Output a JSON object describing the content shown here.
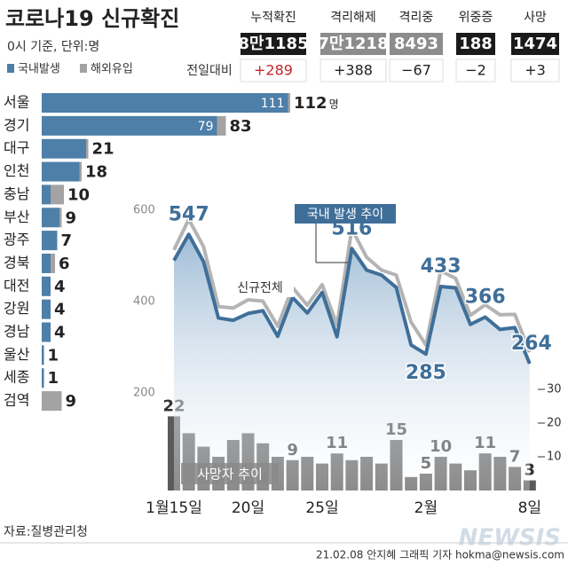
{
  "header": {
    "title": "코로나19 신규확진",
    "subtitle": "0시 기준, 단위:명"
  },
  "stats": {
    "labels": [
      "누적확진",
      "격리해제",
      "격리중",
      "위중증",
      "사망"
    ],
    "values": [
      "8만1185",
      "7만1218",
      "8493",
      "188",
      "1474"
    ],
    "change_label": "전일대비",
    "changes": [
      "+289",
      "+388",
      "−67",
      "−2",
      "+3"
    ]
  },
  "footer": {
    "source": "자료:질병관리청",
    "credit": "21.02.08 안지혜 그래픽 기자 hokma@newsis.com",
    "watermark": "NEWSIS"
  },
  "chart_data": [
    {
      "type": "hbar",
      "stacked": true,
      "categories": [
        "서울",
        "경기",
        "대구",
        "인천",
        "충남",
        "부산",
        "광주",
        "경북",
        "대전",
        "강원",
        "경남",
        "울산",
        "세종",
        "검역"
      ],
      "series": [
        {
          "name": "국내발생",
          "color": "#4d7fa8",
          "values": [
            111,
            79,
            20,
            17,
            4,
            8,
            7,
            4,
            4,
            4,
            4,
            1,
            1,
            0
          ],
          "value_labels": [
            "111",
            "79",
            null,
            null,
            null,
            null,
            null,
            null,
            null,
            null,
            null,
            null,
            null,
            null
          ]
        },
        {
          "name": "해외유입",
          "color": "#a3a3a3",
          "values": [
            1,
            4,
            1,
            1,
            6,
            1,
            0,
            2,
            0,
            0,
            0,
            0,
            0,
            9
          ]
        }
      ],
      "totals": [
        112,
        83,
        21,
        18,
        10,
        9,
        7,
        6,
        4,
        4,
        4,
        1,
        1,
        9
      ],
      "total_unit": "명"
    },
    {
      "type": "line",
      "categories": [
        "1월15일",
        null,
        null,
        null,
        null,
        "20일",
        null,
        null,
        null,
        null,
        "25일",
        null,
        null,
        null,
        null,
        null,
        null,
        "2월",
        null,
        null,
        null,
        null,
        null,
        null,
        "8일"
      ],
      "ylim": [
        200,
        600
      ],
      "yticks": [
        200,
        400,
        600
      ],
      "y2lim": [
        0,
        30
      ],
      "y2ticks": [
        10,
        20,
        30
      ],
      "series": [
        {
          "name": "신규전체",
          "color": "#b4b4b4",
          "values": [
            513,
            580,
            520,
            389,
            386,
            404,
            401,
            346,
            431,
            392,
            437,
            349,
            559,
            497,
            469,
            458,
            355,
            305,
            467,
            451,
            370,
            393,
            371,
            372,
            289
          ]
        },
        {
          "name": "국내 발생 추이",
          "color": "#3f6f99",
          "values": [
            490,
            547,
            487,
            364,
            359,
            374,
            380,
            324,
            409,
            375,
            420,
            323,
            516,
            469,
            458,
            431,
            305,
            285,
            433,
            430,
            350,
            366,
            339,
            343,
            264
          ],
          "value_labels": [
            null,
            "547",
            null,
            null,
            null,
            null,
            null,
            null,
            null,
            null,
            null,
            null,
            "516",
            null,
            null,
            null,
            null,
            "285",
            "433",
            null,
            null,
            "366",
            null,
            null,
            "264"
          ]
        },
        {
          "name": "사망자 추이",
          "type": "bar",
          "axis": "y2",
          "color": "#5a5a5a",
          "values": [
            22,
            17,
            13,
            10,
            15,
            17,
            14,
            10,
            9,
            10,
            8,
            11,
            9,
            10,
            8,
            15,
            4,
            5,
            10,
            8,
            6,
            11,
            10,
            7,
            3
          ],
          "value_labels": [
            "22",
            null,
            null,
            null,
            null,
            null,
            null,
            null,
            "9",
            null,
            null,
            "11",
            null,
            null,
            null,
            "15",
            null,
            "5",
            "10",
            null,
            null,
            "11",
            null,
            "7",
            "3"
          ]
        }
      ]
    }
  ]
}
